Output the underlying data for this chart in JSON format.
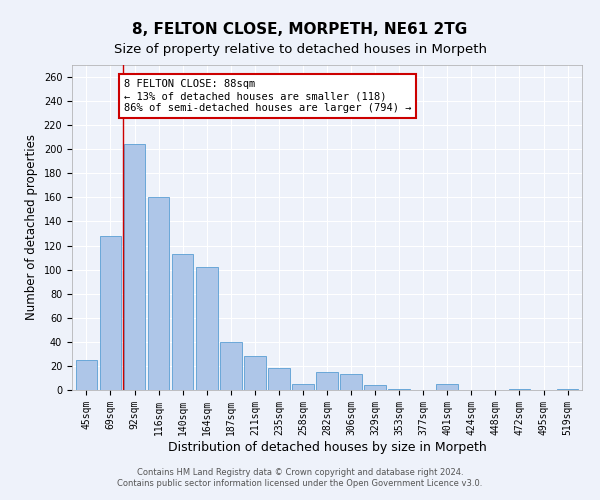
{
  "title": "8, FELTON CLOSE, MORPETH, NE61 2TG",
  "subtitle": "Size of property relative to detached houses in Morpeth",
  "xlabel": "Distribution of detached houses by size in Morpeth",
  "ylabel": "Number of detached properties",
  "categories": [
    "45sqm",
    "69sqm",
    "92sqm",
    "116sqm",
    "140sqm",
    "164sqm",
    "187sqm",
    "211sqm",
    "235sqm",
    "258sqm",
    "282sqm",
    "306sqm",
    "329sqm",
    "353sqm",
    "377sqm",
    "401sqm",
    "424sqm",
    "448sqm",
    "472sqm",
    "495sqm",
    "519sqm"
  ],
  "values": [
    25,
    128,
    204,
    160,
    113,
    102,
    40,
    28,
    18,
    5,
    15,
    13,
    4,
    1,
    0,
    5,
    0,
    0,
    1,
    0,
    1
  ],
  "bar_color": "#aec6e8",
  "bar_edge_color": "#5a9fd4",
  "property_line_x": 1.5,
  "annotation_text": "8 FELTON CLOSE: 88sqm\n← 13% of detached houses are smaller (118)\n86% of semi-detached houses are larger (794) →",
  "annotation_box_color": "#ffffff",
  "annotation_box_edge_color": "#cc0000",
  "vline_color": "#cc0000",
  "footer_line1": "Contains HM Land Registry data © Crown copyright and database right 2024.",
  "footer_line2": "Contains public sector information licensed under the Open Government Licence v3.0.",
  "ylim": [
    0,
    270
  ],
  "yticks": [
    0,
    20,
    40,
    60,
    80,
    100,
    120,
    140,
    160,
    180,
    200,
    220,
    240,
    260
  ],
  "background_color": "#eef2fa",
  "grid_color": "#ffffff",
  "title_fontsize": 11,
  "subtitle_fontsize": 9.5,
  "tick_fontsize": 7,
  "ylabel_fontsize": 8.5,
  "xlabel_fontsize": 9,
  "footer_fontsize": 6,
  "annotation_fontsize": 7.5
}
